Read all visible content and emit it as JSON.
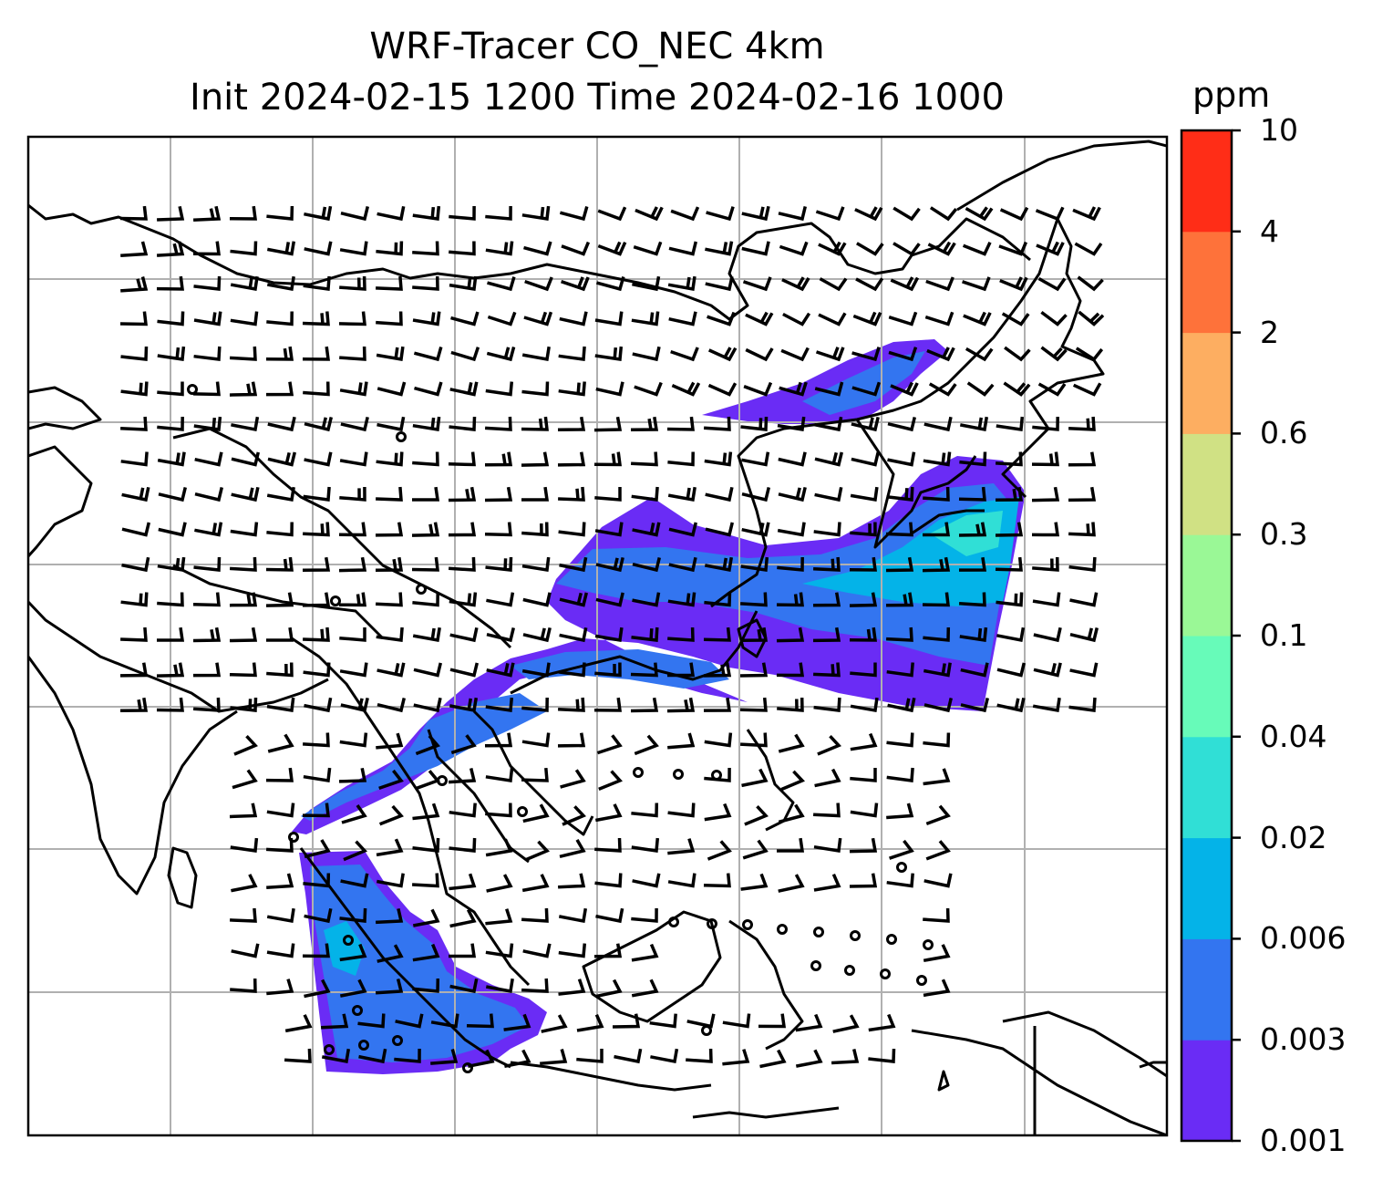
{
  "title": {
    "line1": "WRF-Tracer CO_NEC 4km",
    "line2": "Init 2024-02-15 1200 Time 2024-02-16 1000"
  },
  "colorbar": {
    "unit": "ppm",
    "tick_labels": [
      "0.001",
      "0.003",
      "0.006",
      "0.02",
      "0.04",
      "0.1",
      "0.3",
      "0.6",
      "2",
      "4",
      "10"
    ],
    "colors": [
      "#6a2cf5",
      "#3375f0",
      "#04b3e8",
      "#30dfd6",
      "#67fbb9",
      "#9af896",
      "#d0e184",
      "#fdae61",
      "#fe723a",
      "#ff2d17"
    ]
  },
  "map": {
    "plume_colors": {
      "level1": "#6a2cf5",
      "level2": "#3375f0",
      "level3": "#04b3e8",
      "level4": "#30dfd6"
    },
    "coastline_color": "#000000",
    "gridline_color": "#b0b0b0",
    "wind_barbs": "black"
  }
}
